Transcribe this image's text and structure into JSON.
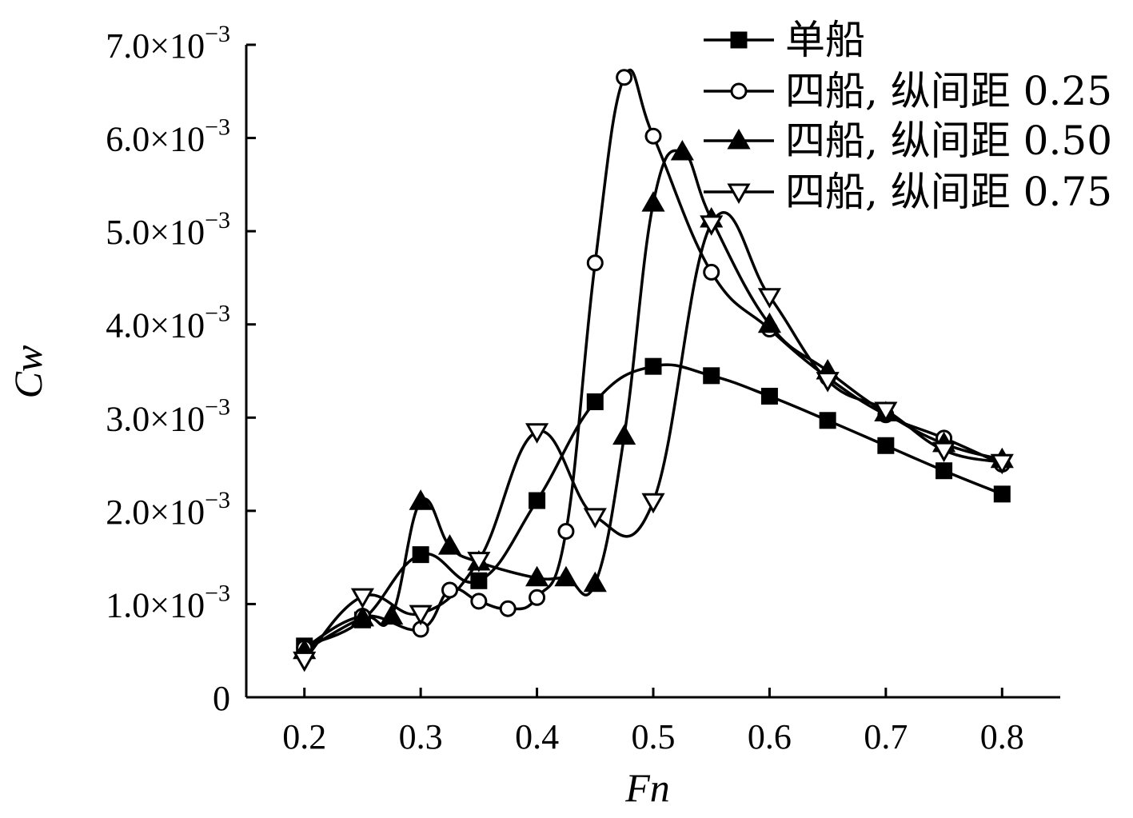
{
  "chart_data": {
    "type": "line",
    "xlabel": "Fn",
    "ylabel": "Cw",
    "xlim": [
      0.15,
      0.85
    ],
    "ylim": [
      0,
      0.007
    ],
    "x_ticks": [
      0.2,
      0.3,
      0.4,
      0.5,
      0.6,
      0.7,
      0.8
    ],
    "x_tick_labels": [
      "0.2",
      "0.3",
      "0.4",
      "0.5",
      "0.6",
      "0.7",
      "0.8"
    ],
    "y_ticks": [
      0,
      0.001,
      0.002,
      0.003,
      0.004,
      0.005,
      0.006,
      0.007
    ],
    "y_tick_labels": [
      {
        "mant": "0",
        "exp": ""
      },
      {
        "mant": "1.0×10",
        "exp": "−3"
      },
      {
        "mant": "2.0×10",
        "exp": "−3"
      },
      {
        "mant": "3.0×10",
        "exp": "−3"
      },
      {
        "mant": "4.0×10",
        "exp": "−3"
      },
      {
        "mant": "5.0×10",
        "exp": "−3"
      },
      {
        "mant": "6.0×10",
        "exp": "−3"
      },
      {
        "mant": "7.0×10",
        "exp": "−3"
      }
    ],
    "grid": false,
    "legend_position": "top-right",
    "series": [
      {
        "name": "单船",
        "marker": "square-filled",
        "x": [
          0.2,
          0.25,
          0.3,
          0.35,
          0.4,
          0.45,
          0.5,
          0.55,
          0.6,
          0.65,
          0.7,
          0.75,
          0.8
        ],
        "y": [
          0.00055,
          0.00083,
          0.00153,
          0.00125,
          0.00211,
          0.00317,
          0.00355,
          0.00345,
          0.00323,
          0.00297,
          0.0027,
          0.00243,
          0.00218
        ]
      },
      {
        "name": "四船, 纵间距 0.25",
        "marker": "circle-open",
        "x": [
          0.2,
          0.25,
          0.3,
          0.325,
          0.35,
          0.375,
          0.4,
          0.425,
          0.45,
          0.475,
          0.5,
          0.55,
          0.6,
          0.65,
          0.7,
          0.75,
          0.8
        ],
        "y": [
          0.00053,
          0.00087,
          0.00073,
          0.00115,
          0.00103,
          0.00095,
          0.00107,
          0.00178,
          0.00466,
          0.00665,
          0.00602,
          0.00456,
          0.00395,
          0.00343,
          0.00303,
          0.00278,
          0.0025
        ]
      },
      {
        "name": "四船, 纵间距 0.50",
        "marker": "triangle-up-filled",
        "x": [
          0.2,
          0.25,
          0.275,
          0.3,
          0.325,
          0.35,
          0.4,
          0.425,
          0.45,
          0.475,
          0.5,
          0.525,
          0.55,
          0.6,
          0.65,
          0.7,
          0.75,
          0.8
        ],
        "y": [
          0.0005,
          0.00085,
          0.00087,
          0.0021,
          0.00162,
          0.00145,
          0.00128,
          0.00128,
          0.00122,
          0.0028,
          0.0053,
          0.00585,
          0.00513,
          0.004,
          0.0035,
          0.00305,
          0.00272,
          0.00255
        ]
      },
      {
        "name": "四船, 纵间距 0.75",
        "marker": "triangle-down-open",
        "x": [
          0.2,
          0.25,
          0.3,
          0.35,
          0.4,
          0.45,
          0.5,
          0.55,
          0.6,
          0.65,
          0.7,
          0.75,
          0.8
        ],
        "y": [
          0.0004,
          0.00108,
          0.0009,
          0.00147,
          0.00285,
          0.00194,
          0.0021,
          0.00508,
          0.0043,
          0.0034,
          0.00308,
          0.00265,
          0.00252
        ]
      }
    ]
  }
}
